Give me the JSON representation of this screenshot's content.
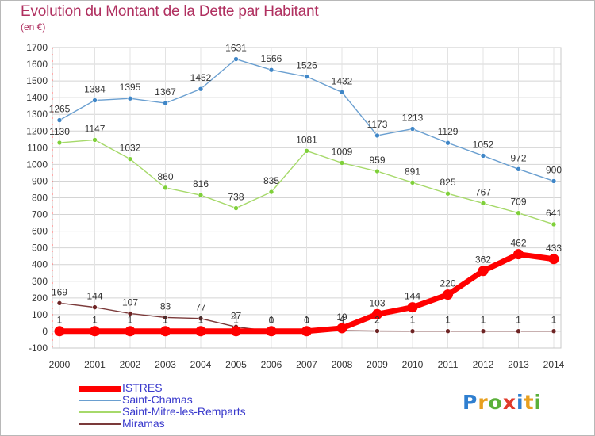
{
  "header": {
    "title": "Evolution du Montant de la Dette par Habitant",
    "subtitle": "(en €)"
  },
  "chart_data": {
    "type": "line",
    "title": "Evolution du Montant de la Dette par Habitant",
    "subtitle": "(en €)",
    "xlabel": "",
    "ylabel": "",
    "x": [
      "2000",
      "2001",
      "2002",
      "2003",
      "2004",
      "2005",
      "2006",
      "2007",
      "2008",
      "2009",
      "2010",
      "2011",
      "2012",
      "2013",
      "2014"
    ],
    "ylim": [
      -100,
      1700
    ],
    "yticks": [
      -100,
      0,
      100,
      200,
      300,
      400,
      500,
      600,
      700,
      800,
      900,
      1000,
      1100,
      1200,
      1300,
      1400,
      1500,
      1600,
      1700
    ],
    "grid": true,
    "legend_position": "bottom-left",
    "series": [
      {
        "name": "ISTRES",
        "values": [
          1,
          1,
          1,
          1,
          1,
          1,
          1,
          1,
          19,
          103,
          144,
          220,
          362,
          462,
          433
        ],
        "color": "#ff0000",
        "marker_color": "#ff0000",
        "thick": true
      },
      {
        "name": "Saint-Chamas",
        "values": [
          1265,
          1384,
          1395,
          1367,
          1452,
          1631,
          1566,
          1526,
          1432,
          1173,
          1213,
          1129,
          1052,
          972,
          900
        ],
        "color": "#6a9fd0",
        "marker_color": "#3f86c7",
        "thick": false
      },
      {
        "name": "Saint-Mitre-les-Remparts",
        "values": [
          1130,
          1147,
          1032,
          860,
          816,
          738,
          835,
          1081,
          1009,
          959,
          891,
          825,
          767,
          709,
          641
        ],
        "color": "#a6d96a",
        "marker_color": "#7fd03a",
        "thick": false
      },
      {
        "name": "Miramas",
        "values": [
          169,
          144,
          107,
          83,
          77,
          27,
          0,
          0,
          4,
          2,
          1,
          1,
          1,
          1,
          1
        ],
        "color": "#7b3a3a",
        "marker_color": "#6e2424",
        "thick": false
      }
    ]
  },
  "legend": [
    {
      "label": "ISTRES",
      "color": "#ff0000"
    },
    {
      "label": "Saint-Chamas",
      "color": "#6a9fd0"
    },
    {
      "label": "Saint-Mitre-les-Remparts",
      "color": "#a6d96a"
    },
    {
      "label": "Miramas",
      "color": "#7b3a3a"
    }
  ],
  "logo": {
    "letters": [
      "P",
      "r",
      "o",
      "x",
      "i",
      "t",
      "i"
    ],
    "colors": [
      "#2f7fd0",
      "#e8a020",
      "#5bb03a",
      "#e03a2a",
      "#2f7fd0",
      "#e8a020",
      "#5bb03a"
    ]
  }
}
